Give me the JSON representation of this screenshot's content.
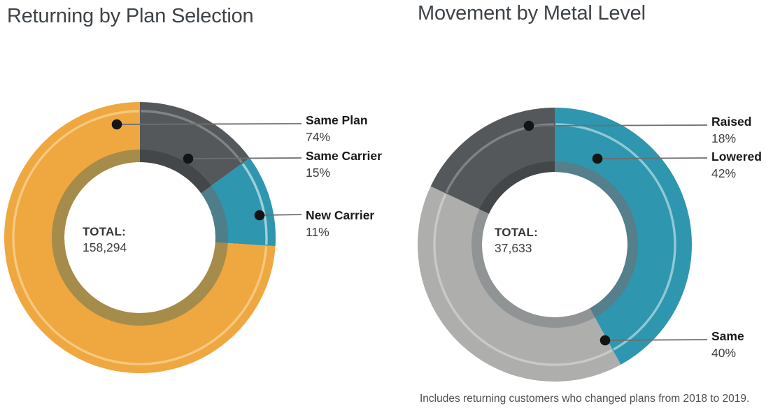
{
  "footnote": "Includes returning customers who changed plans from 2018 to 2019.",
  "chart_data": [
    {
      "type": "pie",
      "subtype": "donut",
      "title": "Returning by Plan Selection",
      "total_label": "TOTAL:",
      "total": "158,294",
      "legend_position": "right-callouts",
      "slices": [
        {
          "label": "Same Plan",
          "value": 74,
          "pct_label": "74%",
          "color": "#EFA740",
          "highlight": "#F5C97F",
          "inner": "#A58C4B"
        },
        {
          "label": "Same Carrier",
          "value": 15,
          "pct_label": "15%",
          "color": "#54585A",
          "highlight": "#7E8486",
          "inner": "#434749"
        },
        {
          "label": "New Carrier",
          "value": 11,
          "pct_label": "11%",
          "color": "#2E96AE",
          "highlight": "#9FCFDA",
          "inner": "#4F7E8A"
        }
      ],
      "clockwise_from_top_order": [
        "Same Carrier",
        "New Carrier",
        "Same Plan"
      ]
    },
    {
      "type": "pie",
      "subtype": "donut",
      "title": "Movement by Metal Level",
      "total_label": "TOTAL:",
      "total": "37,633",
      "legend_position": "right-callouts",
      "slices": [
        {
          "label": "Raised",
          "value": 18,
          "pct_label": "18%",
          "color": "#54585A",
          "highlight": "#7E8486",
          "inner": "#434749"
        },
        {
          "label": "Lowered",
          "value": 42,
          "pct_label": "42%",
          "color": "#2E96AE",
          "highlight": "#8FC9D6",
          "inner": "#557F8A"
        },
        {
          "label": "Same",
          "value": 40,
          "pct_label": "40%",
          "color": "#AEAEAD",
          "highlight": "#C9C9C8",
          "inner": "#909495"
        }
      ],
      "clockwise_from_top_order": [
        "Lowered",
        "Same",
        "Raised"
      ]
    }
  ],
  "marker_color": "#141414",
  "leader_line_color": "#6e6e6e"
}
